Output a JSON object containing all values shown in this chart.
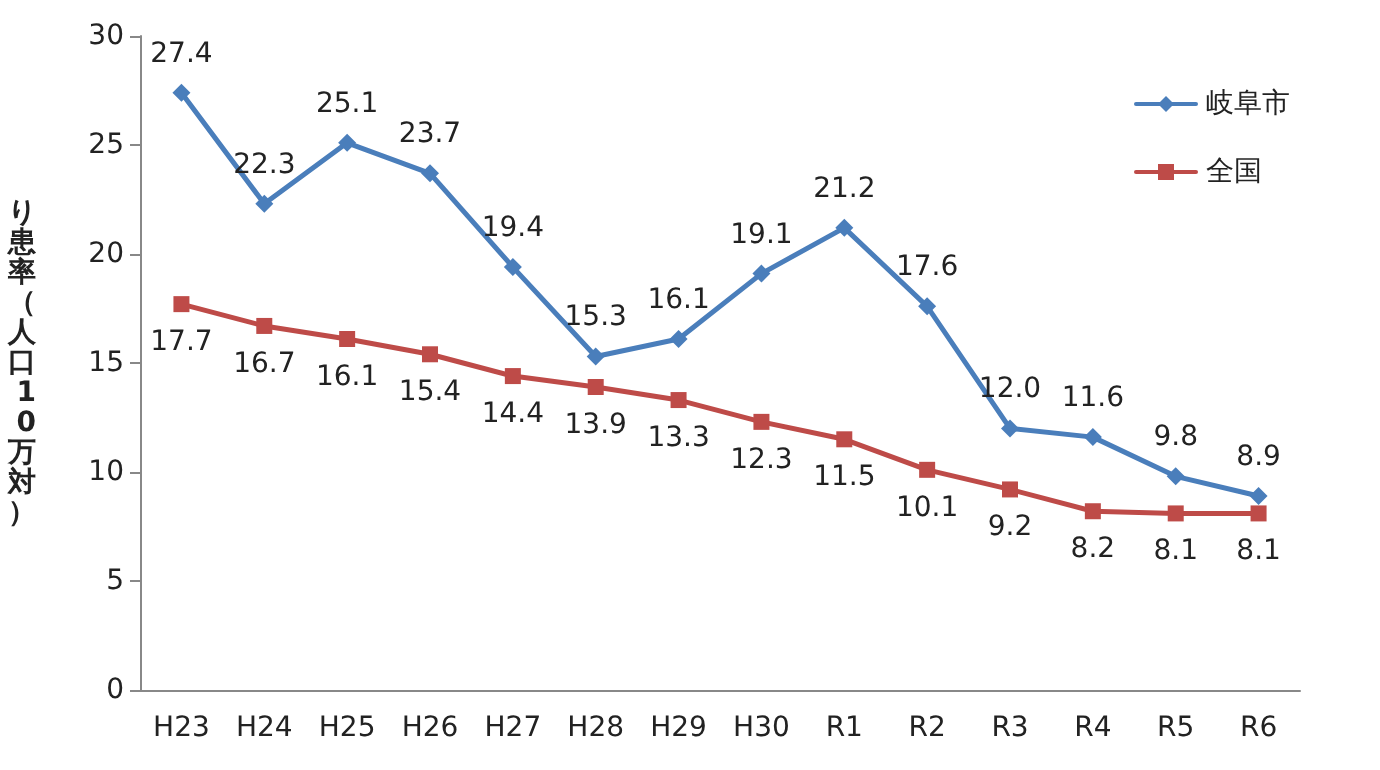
{
  "chart_data": {
    "type": "line",
    "ylabel": "り患率（人口10万対）",
    "categories": [
      "H23",
      "H24",
      "H25",
      "H26",
      "H27",
      "H28",
      "H29",
      "H30",
      "R1",
      "R2",
      "R3",
      "R4",
      "R5",
      "R6"
    ],
    "series": [
      {
        "name": "岐阜市",
        "color": "#4a7ebb",
        "marker": "diamond",
        "values": [
          27.4,
          22.3,
          25.1,
          23.7,
          19.4,
          15.3,
          16.1,
          19.1,
          21.2,
          17.6,
          12.0,
          11.6,
          9.8,
          8.9
        ],
        "value_labels": [
          "27.4",
          "22.3",
          "25.1",
          "23.7",
          "19.4",
          "15.3",
          "16.1",
          "19.1",
          "21.2",
          "17.6",
          "12.0",
          "11.6",
          "9.8",
          "8.9"
        ]
      },
      {
        "name": "全国",
        "color": "#be4b48",
        "marker": "square",
        "values": [
          17.7,
          16.7,
          16.1,
          15.4,
          14.4,
          13.9,
          13.3,
          12.3,
          11.5,
          10.1,
          9.2,
          8.2,
          8.1,
          8.1
        ],
        "value_labels": [
          "17.7",
          "16.7",
          "16.1",
          "15.4",
          "14.4",
          "13.9",
          "13.3",
          "12.3",
          "11.5",
          "10.1",
          "9.2",
          "8.2",
          "8.1",
          "8.1"
        ]
      }
    ],
    "ylim": [
      0,
      30
    ],
    "yticks": [
      0,
      5,
      10,
      15,
      20,
      25,
      30
    ],
    "grid": false,
    "legend": "top right",
    "line_style": "solid"
  }
}
